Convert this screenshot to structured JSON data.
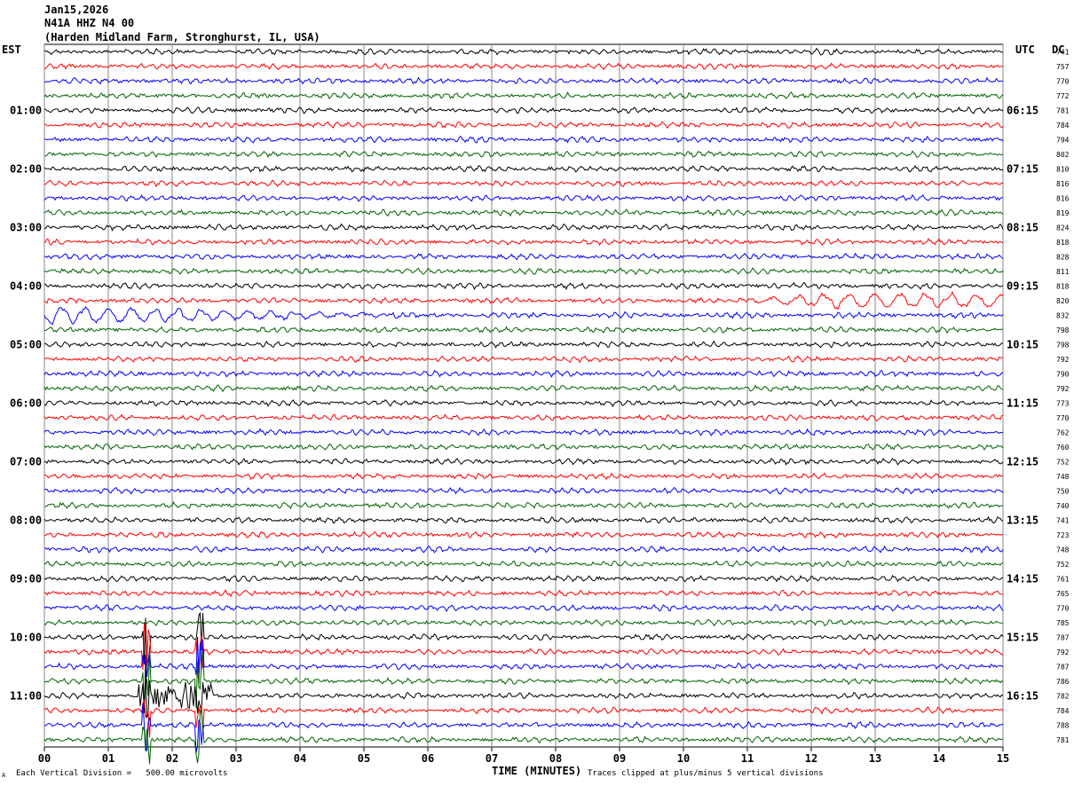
{
  "header": {
    "date": "Jan15,2026",
    "station": "N41A HHZ N4 00",
    "location": "(Harden Midland Farm, Stronghurst, IL, USA)"
  },
  "axes": {
    "left_label": "EST",
    "right_label": "UTC",
    "dc_label": "DC",
    "x_title": "TIME (MINUTES)",
    "scale_note": "Each Vertical Division =   500.00 microvolts",
    "clip_note": "Traces clipped at plus/minus 5 vertical divisions",
    "corner_mark": "A"
  },
  "chart_data": {
    "type": "line",
    "title": "",
    "xlabel": "TIME (MINUTES)",
    "xlim": [
      0,
      15
    ],
    "x_ticks": [
      "00",
      "01",
      "02",
      "03",
      "04",
      "05",
      "06",
      "07",
      "08",
      "09",
      "10",
      "11",
      "12",
      "13",
      "14",
      "15"
    ],
    "trace_count": 48,
    "trace_colors": [
      "#000000",
      "#ff0000",
      "#0000ff",
      "#006400"
    ],
    "est_hour_labels": [
      "01:00",
      "02:00",
      "03:00",
      "04:00",
      "05:00",
      "06:00",
      "07:00",
      "08:00",
      "09:00",
      "10:00",
      "11:00"
    ],
    "utc_hour_labels": [
      "06:15",
      "07:15",
      "08:15",
      "09:15",
      "10:15",
      "11:15",
      "12:15",
      "13:15",
      "14:15",
      "15:15",
      "16:15"
    ],
    "dc_offsets": [
      741,
      757,
      770,
      772,
      781,
      784,
      794,
      802,
      810,
      816,
      816,
      819,
      824,
      818,
      828,
      811,
      818,
      820,
      832,
      798,
      798,
      792,
      790,
      792,
      773,
      770,
      762,
      760,
      752,
      748,
      750,
      740,
      741,
      723,
      748,
      752,
      761,
      765,
      770,
      785,
      787,
      792,
      787,
      786,
      782,
      784,
      788,
      781
    ]
  }
}
